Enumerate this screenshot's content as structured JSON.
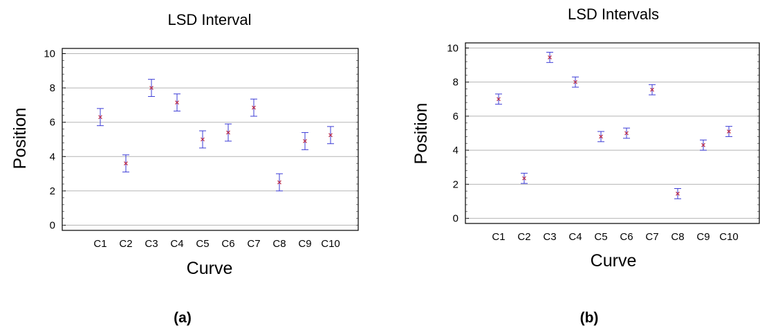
{
  "chart_data": [
    {
      "type": "scatter",
      "panel_label": "(a)",
      "title": "LSD Interval",
      "xlabel": "Curve",
      "ylabel": "Position",
      "categories": [
        "C1",
        "C2",
        "C3",
        "C4",
        "C5",
        "C6",
        "C7",
        "C8",
        "C9",
        "C10"
      ],
      "values": [
        6.3,
        3.6,
        8.0,
        7.15,
        5.0,
        5.4,
        6.85,
        2.5,
        4.9,
        5.25
      ],
      "lower": [
        5.8,
        3.1,
        7.5,
        6.65,
        4.5,
        4.9,
        6.35,
        2.0,
        4.4,
        4.75
      ],
      "upper": [
        6.8,
        4.1,
        8.5,
        7.65,
        5.5,
        5.9,
        7.35,
        3.0,
        5.4,
        5.75
      ],
      "ylim": [
        -0.3,
        10.3
      ],
      "yticks": [
        0,
        2,
        4,
        6,
        8,
        10
      ],
      "grid": true,
      "colors": {
        "interval": "#3b3bd6",
        "point": "#c0304a",
        "grid": "#b5b5b5",
        "frame": "#000000"
      }
    },
    {
      "type": "scatter",
      "panel_label": "(b)",
      "title": "LSD Intervals",
      "xlabel": "Curve",
      "ylabel": "Position",
      "categories": [
        "C1",
        "C2",
        "C3",
        "C4",
        "C5",
        "C6",
        "C7",
        "C8",
        "C9",
        "C10"
      ],
      "values": [
        7.0,
        2.35,
        9.45,
        8.0,
        4.8,
        5.0,
        7.55,
        1.45,
        4.3,
        5.1
      ],
      "lower": [
        6.7,
        2.05,
        9.15,
        7.7,
        4.5,
        4.7,
        7.25,
        1.15,
        4.0,
        4.8
      ],
      "upper": [
        7.3,
        2.65,
        9.75,
        8.3,
        5.1,
        5.3,
        7.85,
        1.75,
        4.6,
        5.4
      ],
      "ylim": [
        -0.3,
        10.3
      ],
      "yticks": [
        0,
        2,
        4,
        6,
        8,
        10
      ],
      "grid": true,
      "colors": {
        "interval": "#3b3bd6",
        "point": "#c0304a",
        "grid": "#b5b5b5",
        "frame": "#000000"
      }
    }
  ]
}
